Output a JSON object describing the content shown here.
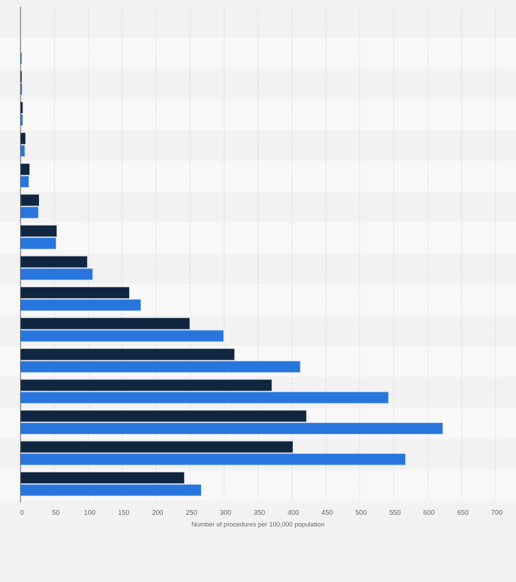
{
  "chart_data": {
    "type": "bar",
    "orientation": "horizontal",
    "title": "",
    "xlabel": "Number of procedures per 100,000 population",
    "ylabel": "",
    "xlim": [
      0,
      700
    ],
    "xticks": [
      "0",
      "50",
      "100",
      "150",
      "200",
      "250",
      "300",
      "350",
      "400",
      "450",
      "500",
      "550",
      "600",
      "650",
      "700"
    ],
    "grid": true,
    "legend": "none visible",
    "categories": [
      "",
      "",
      "",
      "",
      "",
      "",
      "",
      "",
      "",
      "",
      "",
      "",
      "",
      "",
      "",
      ""
    ],
    "series": [
      {
        "name": "",
        "color": "#0f2540",
        "values": [
          0,
          0,
          1,
          3,
          7,
          13,
          27,
          53,
          98,
          160,
          249,
          315,
          370,
          421,
          401,
          241
        ]
      },
      {
        "name": "",
        "color": "#2876dd",
        "values": [
          0,
          1,
          2,
          3,
          6,
          12,
          26,
          52,
          106,
          177,
          299,
          412,
          542,
          622,
          567,
          266
        ]
      }
    ]
  }
}
